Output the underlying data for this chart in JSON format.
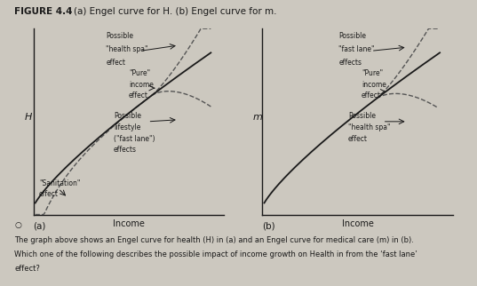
{
  "title_bold": "FIGURE 4.4",
  "title_normal": "   (a) Engel curve for H. (b) Engel curve for m.",
  "background_color": "#ccc8bf",
  "text_color": "#1a1a1a",
  "panel_a": {
    "xlabel": "Income",
    "ylabel": "H"
  },
  "panel_b": {
    "xlabel": "Income",
    "ylabel": "m"
  },
  "label_a": "(a)",
  "label_b": "(b)",
  "footer_line1": "The graph above shows an Engel curve for health (H) in (a) and an Engel curve for medical care (m) in (b).",
  "footer_line2": "Which one of the following describes the possible impact of income growth on Health in from the ‘fast lane’",
  "footer_line3": "effect?",
  "curve_color": "#1a1a1a",
  "dashed_color": "#555555"
}
